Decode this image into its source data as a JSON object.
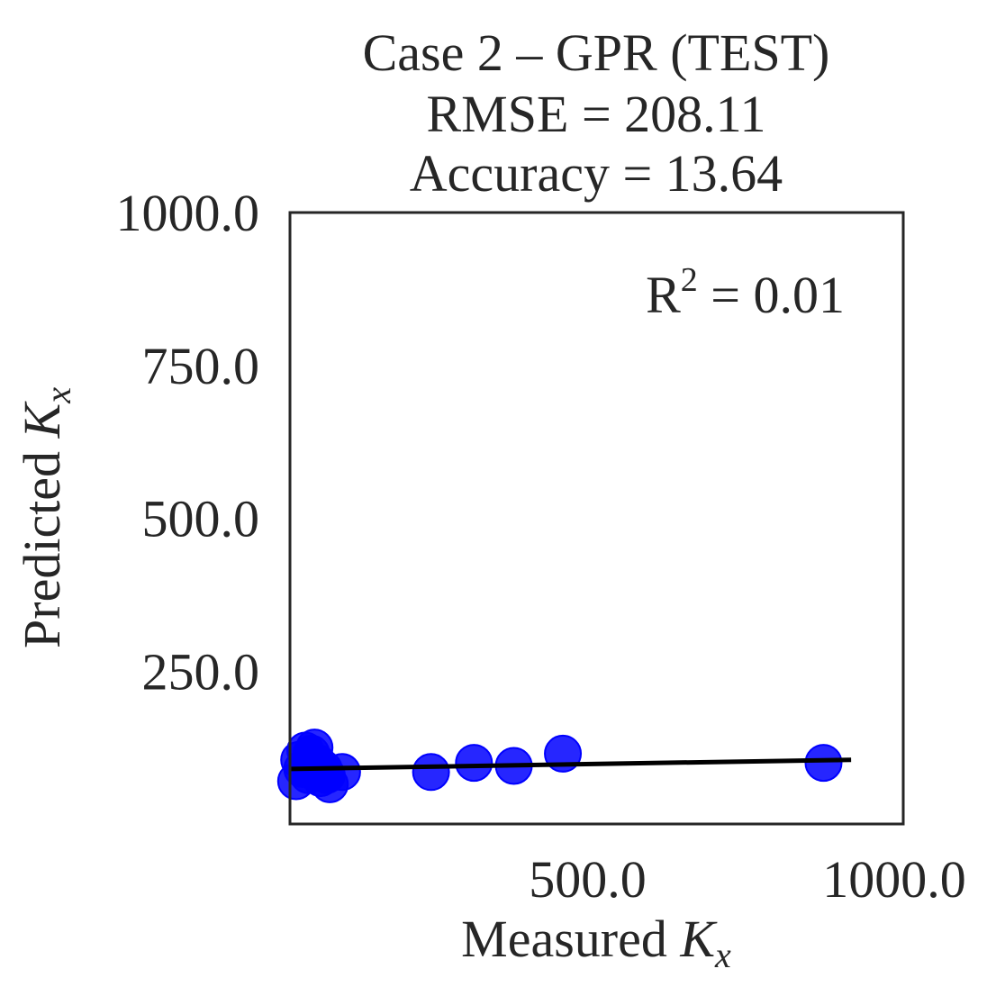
{
  "chart_data": {
    "type": "scatter",
    "title_lines": [
      "Case 2 – GPR (TEST)",
      "RMSE = 208.11",
      "Accuracy = 13.64"
    ],
    "xlabel_text": "Measured ",
    "xlabel_var": "K",
    "xlabel_sub": "x",
    "ylabel_text": "Predicted ",
    "ylabel_var": "K",
    "ylabel_sub": "x",
    "xlim": [
      0,
      1000
    ],
    "ylim": [
      0,
      1000
    ],
    "xticks": [
      500,
      1000
    ],
    "xtick_labels": [
      "500.0",
      "1000.0"
    ],
    "yticks": [
      250,
      500,
      750,
      1000
    ],
    "ytick_labels": [
      "250.0",
      "500.0",
      "750.0",
      "1000.0"
    ],
    "annotation_prefix": "R",
    "annotation_sup": "2",
    "annotation_value": " = 0.01",
    "marker_color": "#0000ff",
    "line_color": "#000000",
    "points": [
      {
        "x": 10,
        "y": 70
      },
      {
        "x": 15,
        "y": 105
      },
      {
        "x": 20,
        "y": 90
      },
      {
        "x": 25,
        "y": 120
      },
      {
        "x": 30,
        "y": 80
      },
      {
        "x": 35,
        "y": 115
      },
      {
        "x": 40,
        "y": 125
      },
      {
        "x": 45,
        "y": 100
      },
      {
        "x": 50,
        "y": 75
      },
      {
        "x": 55,
        "y": 90
      },
      {
        "x": 60,
        "y": 80
      },
      {
        "x": 65,
        "y": 65
      },
      {
        "x": 85,
        "y": 85
      },
      {
        "x": 230,
        "y": 85
      },
      {
        "x": 300,
        "y": 100
      },
      {
        "x": 365,
        "y": 95
      },
      {
        "x": 445,
        "y": 115
      },
      {
        "x": 870,
        "y": 100
      }
    ],
    "fit_line": {
      "x": [
        0,
        915
      ],
      "y": [
        90,
        105
      ]
    }
  }
}
